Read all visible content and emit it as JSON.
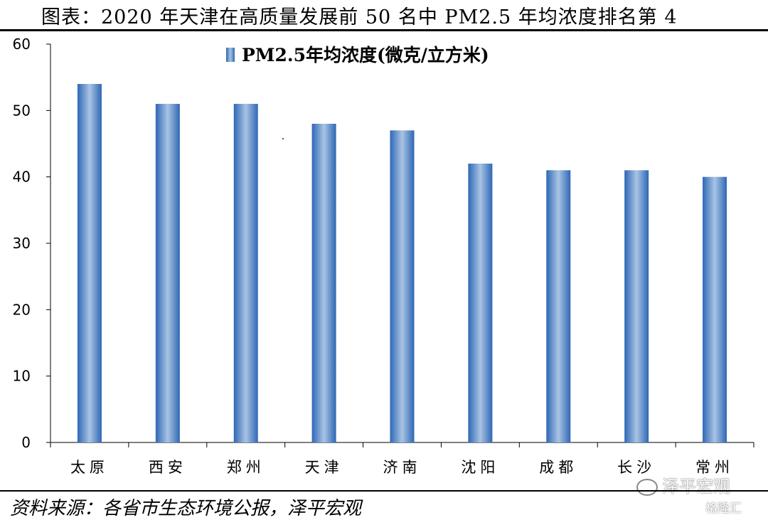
{
  "header": {
    "title": "图表：2020 年天津在高质量发展前 50 名中 PM2.5 年均浓度排名第 4"
  },
  "footer": {
    "source": "资料来源：各省市生态环境公报，泽平宏观"
  },
  "watermark": {
    "text": "泽平宏观",
    "badge": "格隆汇"
  },
  "colors": {
    "bar_dark": "#2e67b5",
    "bar_light": "#a9c4e4",
    "axis": "#000000"
  },
  "chart_data": {
    "type": "bar",
    "categories": [
      "太原",
      "西安",
      "郑州",
      "天津",
      "济南",
      "沈阳",
      "成都",
      "长沙",
      "常州"
    ],
    "series": [
      {
        "name": "PM2.5年均浓度(微克/立方米)",
        "values": [
          54,
          51,
          51,
          48,
          47,
          42,
          41,
          41,
          40
        ]
      }
    ],
    "ylim": [
      0,
      60
    ],
    "yticks": [
      0,
      10,
      20,
      30,
      40,
      50,
      60
    ],
    "grid": false,
    "legend_position": "top-center"
  }
}
